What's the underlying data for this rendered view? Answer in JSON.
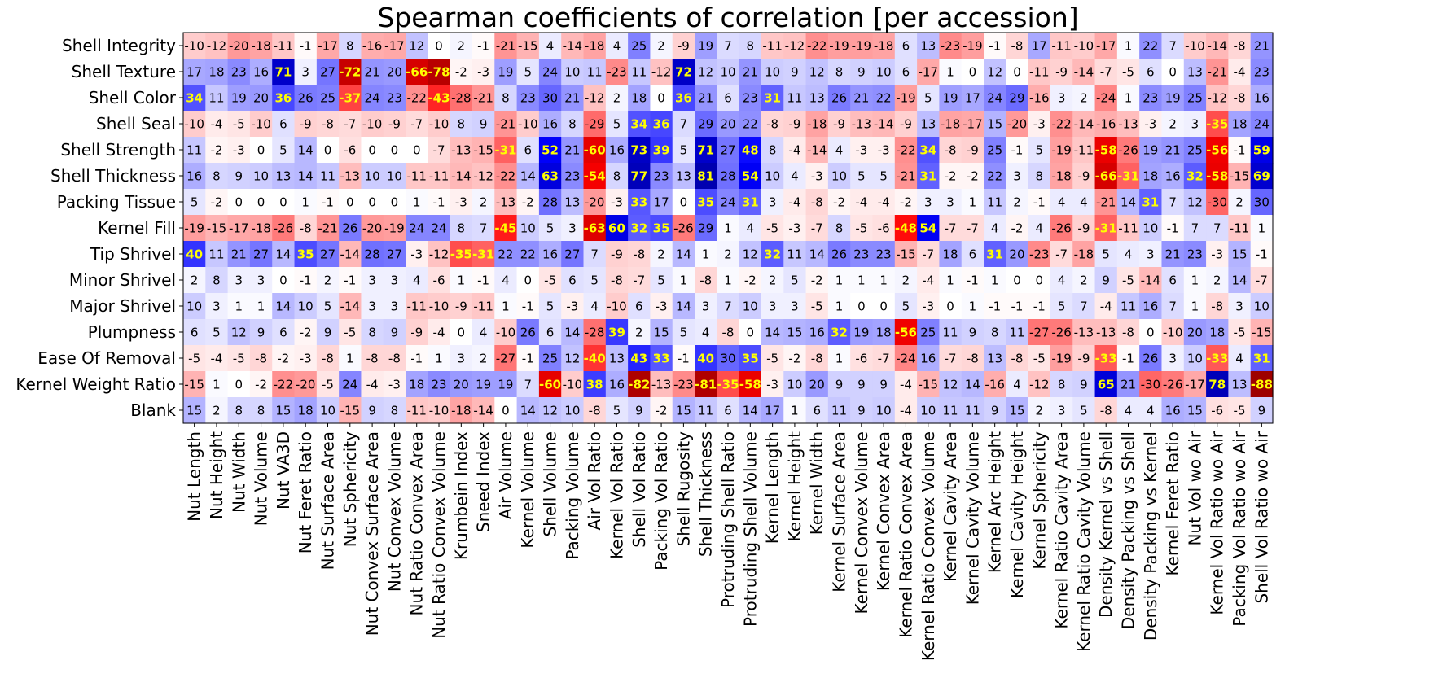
{
  "chart_data": {
    "type": "heatmap",
    "title": "Spearman coefficients of correlation [per accession]",
    "xlabel": "",
    "ylabel": "",
    "colormap": "bwr_r",
    "value_range": [
      -100,
      100
    ],
    "colors": {
      "low": "#800000",
      "neg": "#ff0000",
      "mid": "#ffffff",
      "pos": "#0000ff",
      "high": "#000080",
      "highlight_text": "#ffff00",
      "text": "#000000"
    },
    "highlight_threshold": 30,
    "rows": [
      "Shell Integrity",
      "Shell Texture",
      "Shell Color",
      "Shell Seal",
      "Shell Strength",
      "Shell Thickness",
      "Packing Tissue",
      "Kernel Fill",
      "Tip Shrivel",
      "Minor Shrivel",
      "Major Shrivel",
      "Plumpness",
      "Ease Of Removal",
      "Kernel Weight Ratio",
      "Blank"
    ],
    "columns": [
      "Nut Length",
      "Nut Height",
      "Nut Width",
      "Nut Volume",
      "Nut VA3D",
      "Nut Feret Ratio",
      "Nut Surface Area",
      "Nut Sphericity",
      "Nut Convex Surface Area",
      "Nut Convex Volume",
      "Nut Ratio Convex Area",
      "Nut Ratio Convex Volume",
      "Krumbein Index",
      "Sneed Index",
      "Air Volume",
      "Kernel Volume",
      "Shell Volume",
      "Packing Volume",
      "Air Vol Ratio",
      "Kernel Vol Ratio",
      "Shell Vol Ratio",
      "Packing Vol Ratio",
      "Shell Rugosity",
      "Shell Thickness",
      "Protruding Shell Ratio",
      "Protruding Shell Volume",
      "Kernel Length",
      "Kernel Height",
      "Kernel Width",
      "Kernel Surface Area",
      "Kernel Convex Volume",
      "Kernel Convex Area",
      "Kernel Ratio Convex Area",
      "Kernel Ratio Convex Volume",
      "Kernel Cavity Area",
      "Kernel Cavity Volume",
      "Kernel Arc Height",
      "Kernel Cavity Height",
      "Kernel Sphericity",
      "Kernel Ratio Cavity Area",
      "Kernel Ratio Cavity Volume",
      "Density Kernel vs Shell",
      "Density Packing vs Shell",
      "Density Packing vs Kernel",
      "Kernel Feret Ratio",
      "Nut Vol wo Air",
      "Kernel Vol Ratio wo Air",
      "Packing Vol Ratio wo Air",
      "Shell Vol Ratio wo Air"
    ],
    "values": [
      [
        -10,
        -12,
        -20,
        -18,
        -11,
        -1,
        -17,
        8,
        -16,
        -17,
        12,
        0,
        2,
        -1,
        -21,
        -15,
        4,
        -14,
        -18,
        4,
        25,
        2,
        -9,
        19,
        7,
        8,
        -11,
        -12,
        -22,
        -19,
        -19,
        -18,
        6,
        13,
        -23,
        -19,
        -1,
        -8,
        17,
        -11,
        -10,
        -17,
        1,
        22,
        7,
        -10,
        -14,
        -8,
        21
      ],
      [
        17,
        18,
        23,
        16,
        71,
        3,
        27,
        -72,
        21,
        20,
        -66,
        -78,
        -2,
        -3,
        19,
        5,
        24,
        10,
        11,
        -23,
        11,
        -12,
        72,
        12,
        10,
        21,
        10,
        9,
        12,
        8,
        9,
        10,
        6,
        -17,
        1,
        0,
        12,
        0,
        -11,
        -9,
        -14,
        -7,
        -5,
        6,
        0,
        13,
        -21,
        -4,
        23
      ],
      [
        34,
        11,
        19,
        20,
        36,
        26,
        25,
        -37,
        24,
        23,
        -22,
        -43,
        -28,
        -21,
        8,
        23,
        30,
        21,
        -12,
        2,
        18,
        0,
        36,
        21,
        6,
        23,
        31,
        11,
        13,
        26,
        21,
        22,
        -19,
        5,
        19,
        17,
        24,
        29,
        -16,
        3,
        2,
        -24,
        1,
        23,
        19,
        25,
        -12,
        -8,
        16
      ],
      [
        -10,
        -4,
        -5,
        -10,
        6,
        -9,
        -8,
        -7,
        -10,
        -9,
        -7,
        -10,
        8,
        9,
        -21,
        -10,
        16,
        8,
        -29,
        5,
        34,
        36,
        7,
        29,
        20,
        22,
        -8,
        -9,
        -18,
        -9,
        -13,
        -14,
        -9,
        13,
        -18,
        -17,
        15,
        -20,
        -3,
        -22,
        -14,
        -16,
        -13,
        -3,
        2,
        3,
        -35,
        18,
        24
      ],
      [
        11,
        -2,
        -3,
        0,
        5,
        14,
        0,
        -6,
        0,
        0,
        0,
        -7,
        -13,
        -15,
        -31,
        6,
        52,
        21,
        -60,
        16,
        73,
        39,
        5,
        71,
        27,
        48,
        8,
        -4,
        -14,
        4,
        -3,
        -3,
        -22,
        34,
        -8,
        -9,
        25,
        -1,
        5,
        -19,
        -11,
        -58,
        -26,
        19,
        21,
        25,
        -56,
        -1,
        59
      ],
      [
        16,
        8,
        9,
        10,
        13,
        14,
        11,
        -13,
        10,
        10,
        -11,
        -11,
        -14,
        -12,
        -22,
        14,
        63,
        23,
        -54,
        8,
        77,
        23,
        13,
        81,
        28,
        54,
        10,
        4,
        -3,
        10,
        5,
        5,
        -21,
        31,
        -2,
        -2,
        22,
        3,
        8,
        -18,
        -9,
        -66,
        -31,
        18,
        16,
        32,
        -58,
        -15,
        69
      ],
      [
        5,
        -2,
        0,
        0,
        0,
        1,
        -1,
        0,
        0,
        0,
        1,
        -1,
        -3,
        2,
        -13,
        -2,
        28,
        13,
        -20,
        -3,
        33,
        17,
        0,
        35,
        24,
        31,
        3,
        -4,
        -8,
        -2,
        -4,
        -4,
        -2,
        3,
        3,
        1,
        11,
        2,
        -1,
        4,
        4,
        -21,
        14,
        31,
        7,
        12,
        -30,
        2,
        30
      ],
      [
        -19,
        -15,
        -17,
        -18,
        -26,
        -8,
        -21,
        26,
        -20,
        -19,
        24,
        24,
        8,
        7,
        -45,
        10,
        5,
        3,
        -63,
        60,
        32,
        35,
        -26,
        29,
        1,
        4,
        -5,
        -3,
        -7,
        8,
        -5,
        -6,
        -48,
        54,
        -7,
        -7,
        4,
        -2,
        4,
        -26,
        -9,
        -31,
        -11,
        10,
        -1,
        7,
        7,
        -11,
        1
      ],
      [
        40,
        11,
        21,
        27,
        14,
        35,
        27,
        -14,
        28,
        27,
        -3,
        -12,
        -35,
        -31,
        22,
        22,
        16,
        27,
        7,
        -9,
        -8,
        2,
        14,
        1,
        2,
        12,
        32,
        11,
        14,
        26,
        23,
        23,
        -15,
        -7,
        18,
        6,
        31,
        20,
        -23,
        -7,
        -18,
        5,
        4,
        3,
        21,
        23,
        -3,
        15,
        -1
      ],
      [
        2,
        8,
        3,
        3,
        0,
        -1,
        2,
        -1,
        3,
        3,
        4,
        -6,
        1,
        -1,
        4,
        0,
        -5,
        6,
        5,
        -8,
        -7,
        5,
        1,
        -8,
        1,
        -2,
        2,
        5,
        -2,
        1,
        1,
        1,
        2,
        -4,
        1,
        -1,
        1,
        0,
        0,
        4,
        2,
        9,
        -5,
        -14,
        6,
        1,
        2,
        14,
        -7
      ],
      [
        10,
        3,
        1,
        1,
        14,
        10,
        5,
        -14,
        3,
        3,
        -11,
        -10,
        -9,
        -11,
        1,
        -1,
        5,
        -3,
        4,
        -10,
        6,
        -3,
        14,
        3,
        7,
        10,
        3,
        3,
        -5,
        1,
        0,
        0,
        5,
        -3,
        0,
        1,
        -1,
        -1,
        -1,
        5,
        7,
        -4,
        11,
        16,
        7,
        1,
        -8,
        3,
        10
      ],
      [
        6,
        5,
        12,
        9,
        6,
        -2,
        9,
        -5,
        8,
        9,
        -9,
        -4,
        0,
        4,
        -10,
        26,
        6,
        14,
        -28,
        39,
        2,
        15,
        5,
        4,
        -8,
        0,
        14,
        15,
        16,
        32,
        19,
        18,
        -56,
        25,
        11,
        9,
        8,
        11,
        -27,
        -26,
        -13,
        -13,
        -8,
        0,
        -10,
        20,
        18,
        -5,
        -15
      ],
      [
        -5,
        -4,
        -5,
        -8,
        -2,
        -3,
        -8,
        1,
        -8,
        -8,
        -1,
        1,
        3,
        2,
        -27,
        -1,
        25,
        12,
        -40,
        13,
        43,
        33,
        -1,
        40,
        30,
        35,
        -5,
        -2,
        -8,
        1,
        -6,
        -7,
        -24,
        16,
        -7,
        -8,
        13,
        -8,
        -5,
        -19,
        -9,
        -33,
        -1,
        26,
        3,
        10,
        -33,
        4,
        31
      ],
      [
        -15,
        1,
        0,
        -2,
        -22,
        -20,
        -5,
        24,
        -4,
        -3,
        18,
        23,
        20,
        19,
        19,
        7,
        -60,
        -10,
        38,
        16,
        -82,
        -13,
        -23,
        -81,
        -35,
        -58,
        -3,
        10,
        20,
        9,
        9,
        9,
        -4,
        -15,
        12,
        14,
        -16,
        4,
        -12,
        8,
        9,
        65,
        21,
        -30,
        -26,
        -17,
        78,
        13,
        -88
      ],
      [
        15,
        2,
        8,
        8,
        15,
        18,
        10,
        -15,
        9,
        8,
        -11,
        -10,
        -18,
        -14,
        0,
        14,
        12,
        10,
        -8,
        5,
        9,
        -2,
        15,
        11,
        6,
        14,
        17,
        1,
        6,
        11,
        9,
        10,
        -4,
        10,
        11,
        11,
        9,
        15,
        2,
        3,
        5,
        -8,
        4,
        4,
        16,
        15,
        -6,
        -5,
        9
      ]
    ]
  }
}
